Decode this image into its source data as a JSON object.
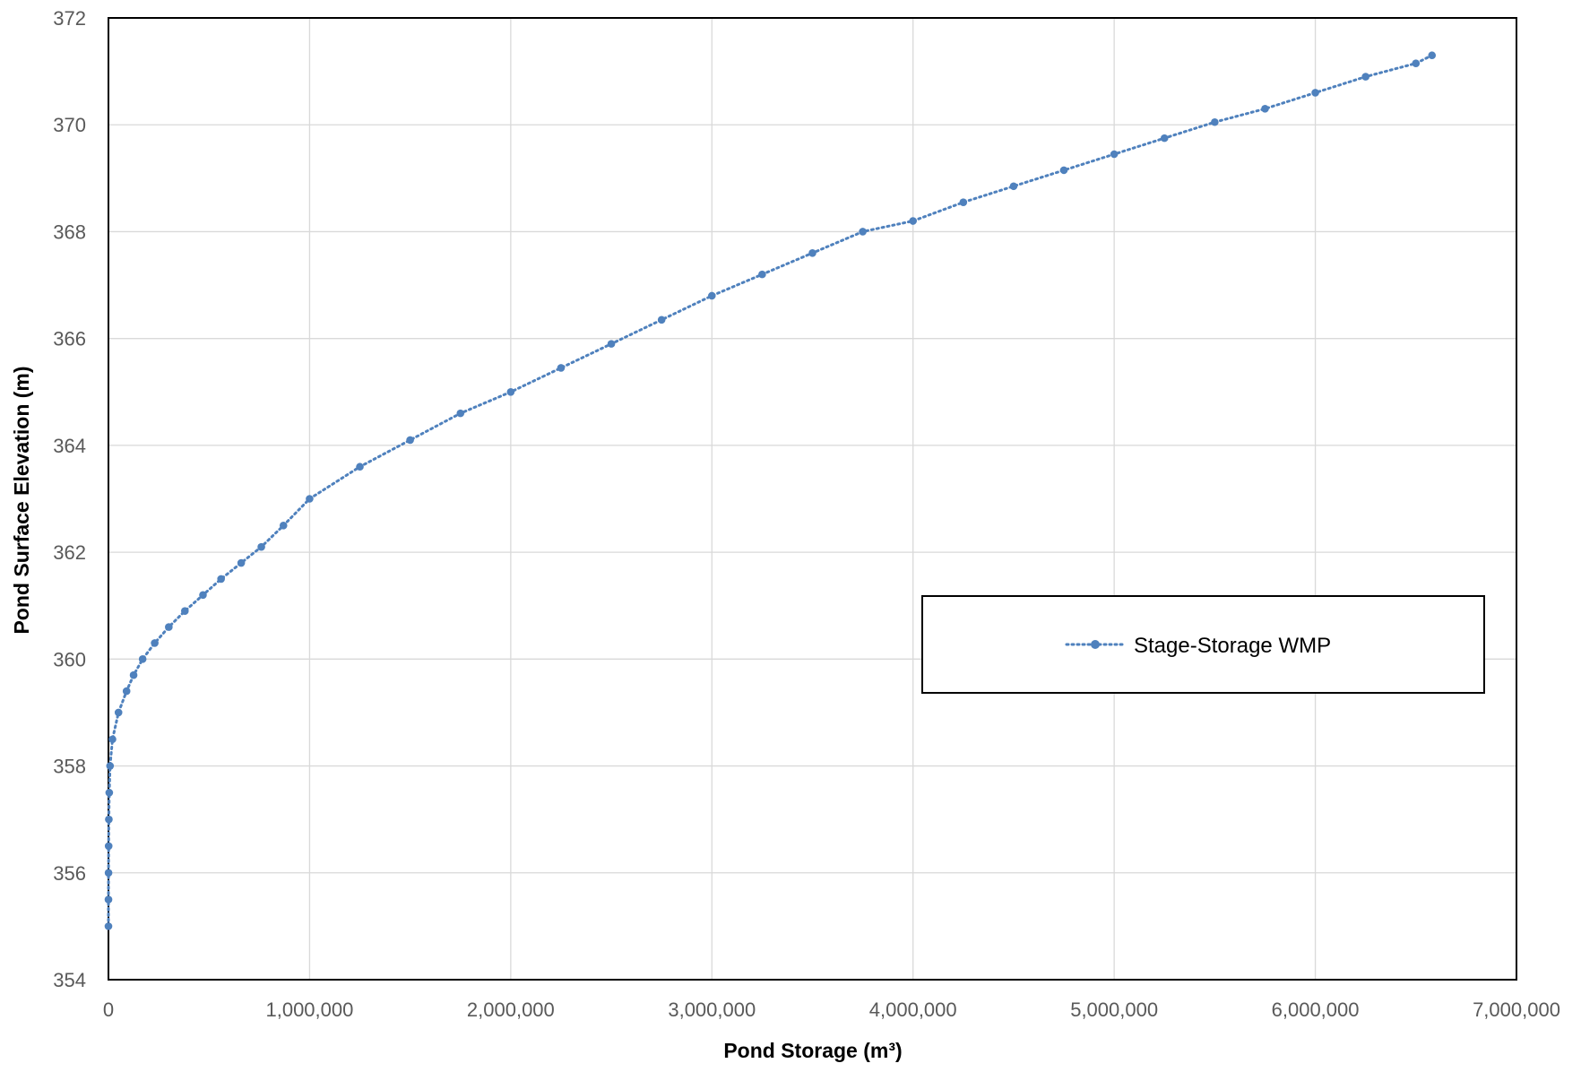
{
  "chart_data": {
    "type": "line",
    "title": "",
    "xlabel": "Pond Storage (m³)",
    "ylabel": "Pond Surface Elevation (m)",
    "xlim": [
      0,
      7000000
    ],
    "ylim": [
      354,
      372
    ],
    "x_ticks": [
      "0",
      "1,000,000",
      "2,000,000",
      "3,000,000",
      "4,000,000",
      "5,000,000",
      "6,000,000",
      "7,000,000"
    ],
    "y_ticks": [
      "354",
      "356",
      "358",
      "360",
      "362",
      "364",
      "366",
      "368",
      "370",
      "372"
    ],
    "grid": true,
    "legend_position": "center-right",
    "series": [
      {
        "name": "Stage-Storage WMP",
        "color": "#4f81bd",
        "line_style": "dotted",
        "marker": "circle",
        "points": [
          [
            0,
            355.0
          ],
          [
            100,
            355.5
          ],
          [
            400,
            356.0
          ],
          [
            1000,
            356.5
          ],
          [
            2000,
            357.0
          ],
          [
            4000,
            357.5
          ],
          [
            8000,
            358.0
          ],
          [
            20000,
            358.5
          ],
          [
            50000,
            359.0
          ],
          [
            90000,
            359.4
          ],
          [
            125000,
            359.7
          ],
          [
            170000,
            360.0
          ],
          [
            230000,
            360.3
          ],
          [
            300000,
            360.6
          ],
          [
            380000,
            360.9
          ],
          [
            470000,
            361.2
          ],
          [
            560000,
            361.5
          ],
          [
            660000,
            361.8
          ],
          [
            760000,
            362.1
          ],
          [
            870000,
            362.5
          ],
          [
            1000000,
            363.0
          ],
          [
            1250000,
            363.6
          ],
          [
            1500000,
            364.1
          ],
          [
            1750000,
            364.6
          ],
          [
            2000000,
            365.0
          ],
          [
            2250000,
            365.45
          ],
          [
            2500000,
            365.9
          ],
          [
            2750000,
            366.35
          ],
          [
            3000000,
            366.8
          ],
          [
            3250000,
            367.2
          ],
          [
            3500000,
            367.6
          ],
          [
            3750000,
            368.0
          ],
          [
            4000000,
            368.2
          ],
          [
            4250000,
            368.55
          ],
          [
            4500000,
            368.85
          ],
          [
            4750000,
            369.15
          ],
          [
            5000000,
            369.45
          ],
          [
            5250000,
            369.75
          ],
          [
            5500000,
            370.05
          ],
          [
            5750000,
            370.3
          ],
          [
            6000000,
            370.6
          ],
          [
            6250000,
            370.9
          ],
          [
            6500000,
            371.15
          ],
          [
            6580000,
            371.3
          ]
        ]
      }
    ]
  }
}
